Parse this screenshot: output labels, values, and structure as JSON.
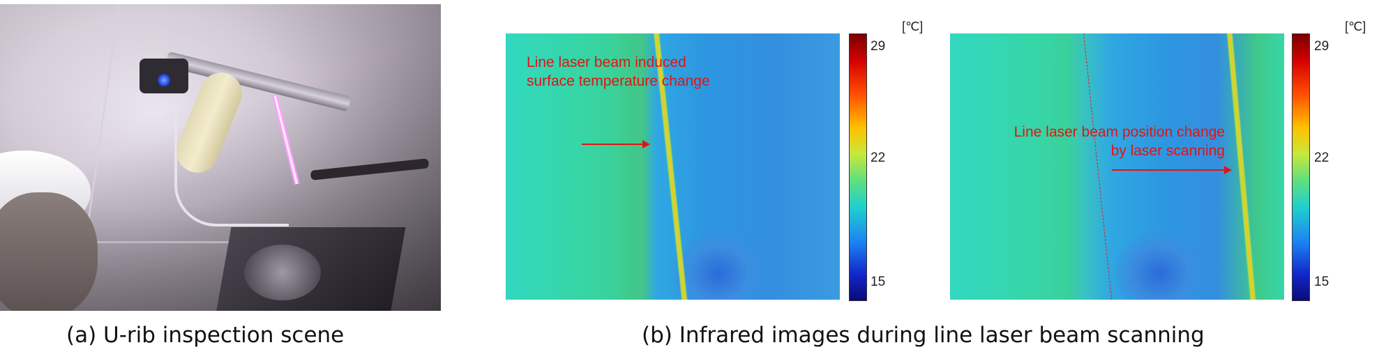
{
  "panel_a": {
    "caption": "(a) U-rib inspection scene"
  },
  "panel_b": {
    "caption": "(b) Infrared images during line laser beam scanning",
    "left_image": {
      "annotation_line1": "Line laser beam induced",
      "annotation_line2": "surface temperature change"
    },
    "right_image": {
      "annotation_line1": "Line laser beam position change",
      "annotation_line2": "by laser scanning"
    },
    "colorbar": {
      "unit": "[℃]",
      "ticks": [
        "29",
        "22",
        "15"
      ],
      "colors": [
        "#7a0000",
        "#ff4a00",
        "#ffc000",
        "#5ee07e",
        "#1fd0d0",
        "#1c84f2",
        "#0a0a7a"
      ]
    }
  }
}
